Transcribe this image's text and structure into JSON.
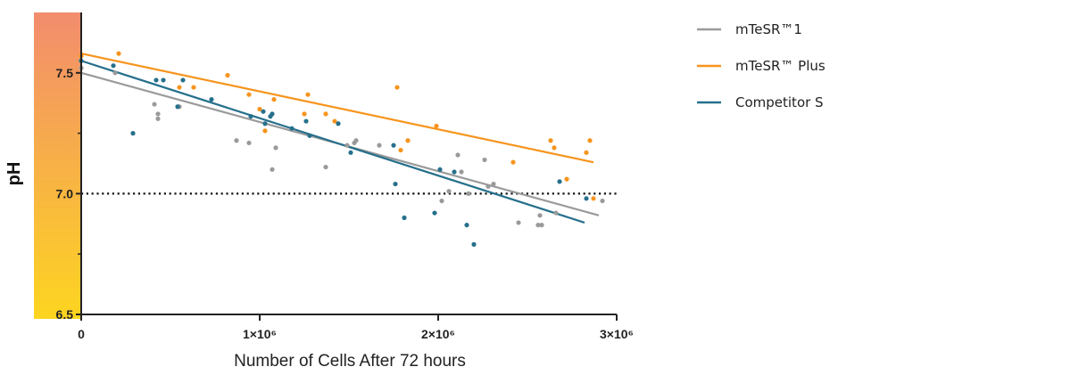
{
  "chart_data": {
    "type": "scatter",
    "xlabel": "Number of Cells After 72 hours",
    "ylabel": "pH",
    "xlim": [
      0,
      3000000
    ],
    "ylim": [
      6.5,
      7.75
    ],
    "x_ticks": [
      {
        "value": 0,
        "label": "0"
      },
      {
        "value": 1000000,
        "label": "1×10⁶"
      },
      {
        "value": 2000000,
        "label": "2×10⁶"
      },
      {
        "value": 3000000,
        "label": "3×10⁶"
      }
    ],
    "y_ticks": [
      {
        "value": 6.5,
        "label": "6.5"
      },
      {
        "value": 7.0,
        "label": "7.0"
      },
      {
        "value": 7.5,
        "label": "7.5"
      }
    ],
    "reference_line": {
      "y": 7.0,
      "style": "dotted"
    },
    "colors": {
      "axis": "#222222",
      "gradient_top": "#F28C6E",
      "gradient_bottom": "#FDD520"
    },
    "legend": {
      "position": "right"
    },
    "series": [
      {
        "name": "mTeSR™1",
        "color": "#9A9A9A",
        "trend": [
          [
            0,
            7.5
          ],
          [
            2900000,
            6.91
          ]
        ],
        "points": [
          [
            0,
            7.52
          ],
          [
            190000,
            7.5
          ],
          [
            410000,
            7.37
          ],
          [
            430000,
            7.31
          ],
          [
            430000,
            7.33
          ],
          [
            550000,
            7.36
          ],
          [
            870000,
            7.22
          ],
          [
            940000,
            7.21
          ],
          [
            1070000,
            7.1
          ],
          [
            1090000,
            7.19
          ],
          [
            1370000,
            7.11
          ],
          [
            1490000,
            7.2
          ],
          [
            1530000,
            7.21
          ],
          [
            1540000,
            7.22
          ],
          [
            1670000,
            7.2
          ],
          [
            2020000,
            6.97
          ],
          [
            2060000,
            7.01
          ],
          [
            2110000,
            7.16
          ],
          [
            2130000,
            7.09
          ],
          [
            2170000,
            7.0
          ],
          [
            2260000,
            7.14
          ],
          [
            2280000,
            7.03
          ],
          [
            2310000,
            7.04
          ],
          [
            2450000,
            6.88
          ],
          [
            2560000,
            6.87
          ],
          [
            2570000,
            6.91
          ],
          [
            2580000,
            6.87
          ],
          [
            2660000,
            6.92
          ],
          [
            2920000,
            6.97
          ]
        ]
      },
      {
        "name": "mTeSR™ Plus",
        "color": "#F7941D",
        "trend": [
          [
            0,
            7.58
          ],
          [
            2870000,
            7.13
          ]
        ],
        "points": [
          [
            0,
            7.57
          ],
          [
            210000,
            7.58
          ],
          [
            550000,
            7.44
          ],
          [
            630000,
            7.44
          ],
          [
            820000,
            7.49
          ],
          [
            940000,
            7.41
          ],
          [
            1000000,
            7.35
          ],
          [
            1030000,
            7.26
          ],
          [
            1080000,
            7.39
          ],
          [
            1250000,
            7.33
          ],
          [
            1270000,
            7.41
          ],
          [
            1370000,
            7.33
          ],
          [
            1420000,
            7.3
          ],
          [
            1770000,
            7.44
          ],
          [
            1790000,
            7.18
          ],
          [
            1830000,
            7.22
          ],
          [
            1990000,
            7.28
          ],
          [
            2420000,
            7.13
          ],
          [
            2630000,
            7.22
          ],
          [
            2650000,
            7.19
          ],
          [
            2720000,
            7.06
          ],
          [
            2830000,
            7.17
          ],
          [
            2850000,
            7.22
          ],
          [
            2870000,
            6.98
          ]
        ]
      },
      {
        "name": "Competitor S",
        "color": "#26708C",
        "trend": [
          [
            0,
            7.55
          ],
          [
            2820000,
            6.88
          ]
        ],
        "points": [
          [
            0,
            7.55
          ],
          [
            180000,
            7.53
          ],
          [
            290000,
            7.25
          ],
          [
            420000,
            7.47
          ],
          [
            460000,
            7.47
          ],
          [
            540000,
            7.36
          ],
          [
            570000,
            7.47
          ],
          [
            730000,
            7.39
          ],
          [
            950000,
            7.32
          ],
          [
            1020000,
            7.34
          ],
          [
            1030000,
            7.29
          ],
          [
            1060000,
            7.32
          ],
          [
            1070000,
            7.33
          ],
          [
            1180000,
            7.27
          ],
          [
            1260000,
            7.3
          ],
          [
            1280000,
            7.24
          ],
          [
            1440000,
            7.29
          ],
          [
            1510000,
            7.17
          ],
          [
            1750000,
            7.2
          ],
          [
            1760000,
            7.04
          ],
          [
            1810000,
            6.9
          ],
          [
            1980000,
            6.92
          ],
          [
            2010000,
            7.1
          ],
          [
            2090000,
            7.09
          ],
          [
            2160000,
            6.87
          ],
          [
            2200000,
            6.79
          ],
          [
            2680000,
            7.05
          ],
          [
            2830000,
            6.98
          ]
        ]
      }
    ]
  }
}
